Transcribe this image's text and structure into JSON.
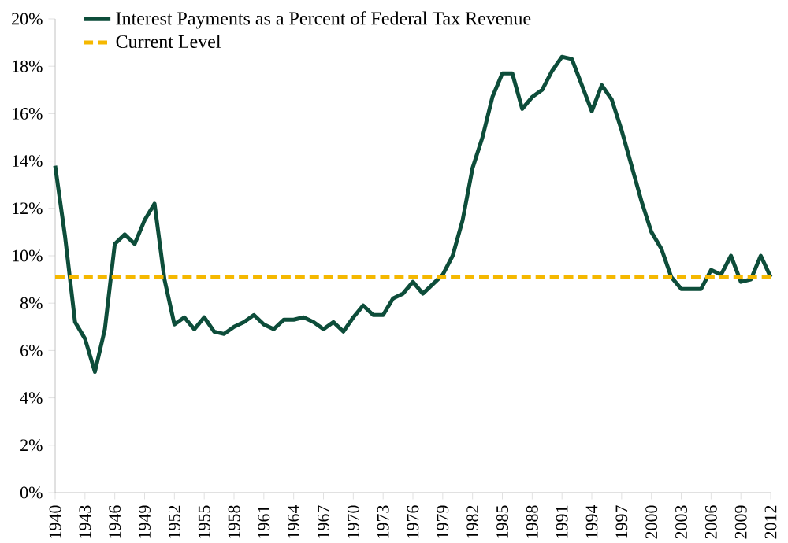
{
  "chart_data": {
    "type": "line",
    "x": [
      1940,
      1941,
      1942,
      1943,
      1944,
      1945,
      1946,
      1947,
      1948,
      1949,
      1950,
      1951,
      1952,
      1953,
      1954,
      1955,
      1956,
      1957,
      1958,
      1959,
      1960,
      1961,
      1962,
      1963,
      1964,
      1965,
      1966,
      1967,
      1968,
      1969,
      1970,
      1971,
      1972,
      1973,
      1974,
      1975,
      1976,
      1977,
      1978,
      1979,
      1980,
      1981,
      1982,
      1983,
      1984,
      1985,
      1986,
      1987,
      1988,
      1989,
      1990,
      1991,
      1992,
      1993,
      1994,
      1995,
      1996,
      1997,
      1998,
      1999,
      2000,
      2001,
      2002,
      2003,
      2004,
      2005,
      2006,
      2007,
      2008,
      2009,
      2010,
      2011,
      2012
    ],
    "series": [
      {
        "name": "Interest Payments as a Percent of Federal Tax Revenue",
        "color": "#0d4d3a",
        "values": [
          13.8,
          10.8,
          7.2,
          6.5,
          5.1,
          6.9,
          10.5,
          10.9,
          10.5,
          11.5,
          12.2,
          9.0,
          7.1,
          7.4,
          6.9,
          7.4,
          6.8,
          6.7,
          7.0,
          7.2,
          7.5,
          7.1,
          6.9,
          7.3,
          7.3,
          7.4,
          7.2,
          6.9,
          7.2,
          6.8,
          7.4,
          7.9,
          7.5,
          7.5,
          8.2,
          8.4,
          8.9,
          8.4,
          8.8,
          9.2,
          10.0,
          11.5,
          13.7,
          15.0,
          16.7,
          17.7,
          17.7,
          16.2,
          16.7,
          17.0,
          17.8,
          18.4,
          18.3,
          17.2,
          16.1,
          17.2,
          16.6,
          15.3,
          13.8,
          12.3,
          11.0,
          10.3,
          9.1,
          8.6,
          8.6,
          8.6,
          9.4,
          9.2,
          10.0,
          8.9,
          9.0,
          10.0,
          9.1
        ]
      }
    ],
    "ref_lines": [
      {
        "axis": "y",
        "value": 9.1,
        "label": "Current Level",
        "color": "#f5b800",
        "line_style": "dashed"
      }
    ],
    "xlim": [
      1940,
      2012
    ],
    "xticks": [
      1940,
      1943,
      1946,
      1949,
      1952,
      1955,
      1958,
      1961,
      1964,
      1967,
      1970,
      1973,
      1976,
      1979,
      1982,
      1985,
      1988,
      1991,
      1994,
      1997,
      2000,
      2003,
      2006,
      2009,
      2012
    ],
    "ylim": [
      0,
      20
    ],
    "yticks": [
      {
        "value": 0,
        "label": "0%"
      },
      {
        "value": 2,
        "label": "2%"
      },
      {
        "value": 4,
        "label": "4%"
      },
      {
        "value": 6,
        "label": "6%"
      },
      {
        "value": 8,
        "label": "8%"
      },
      {
        "value": 10,
        "label": "10%"
      },
      {
        "value": 12,
        "label": "12%"
      },
      {
        "value": 14,
        "label": "14%"
      },
      {
        "value": 16,
        "label": "16%"
      },
      {
        "value": 18,
        "label": "18%"
      },
      {
        "value": 20,
        "label": "20%"
      }
    ],
    "grid": false,
    "legend": "top left",
    "marker": "none",
    "line_style": "solid"
  }
}
